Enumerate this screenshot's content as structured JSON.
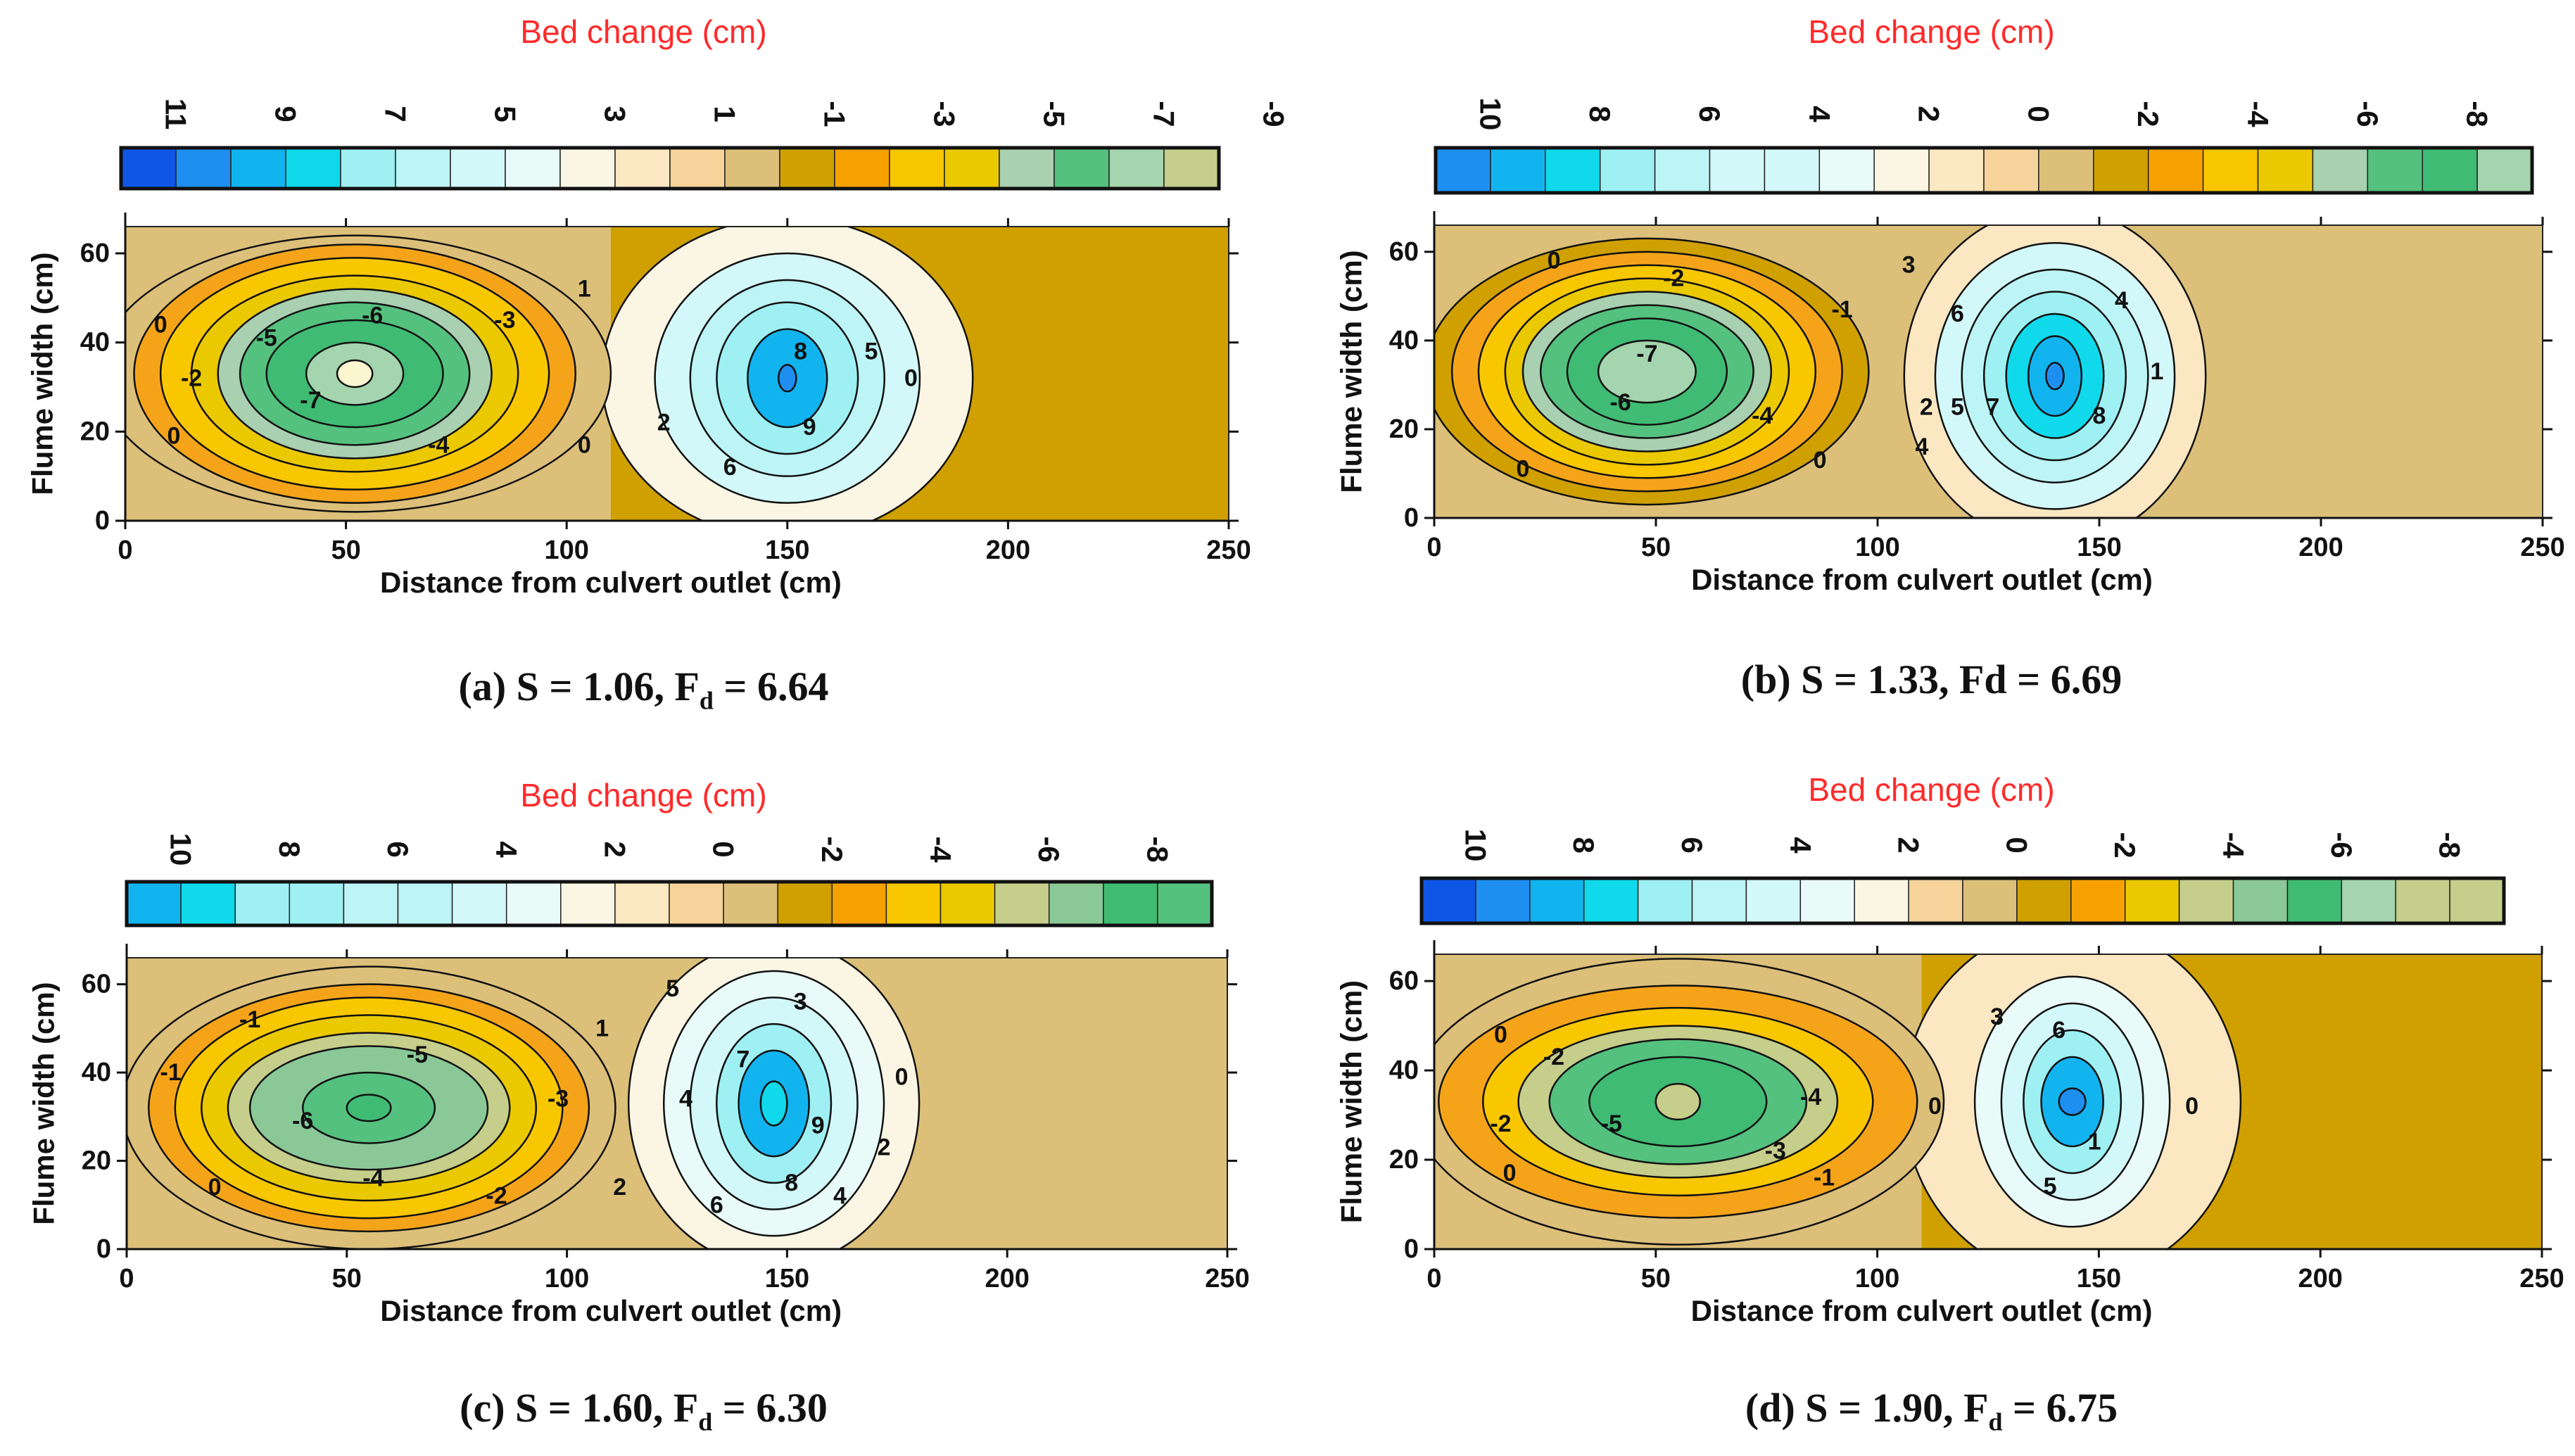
{
  "figure": {
    "colorbar_title": "Bed change (cm)",
    "x_label": "Distance from culvert outlet (cm)",
    "y_label": "Flume width (cm)",
    "x_ticks": [
      0,
      50,
      100,
      150,
      200,
      250
    ],
    "y_ticks": [
      0,
      20,
      40,
      60
    ],
    "xlim": [
      0,
      250
    ],
    "ylim": [
      0,
      66
    ]
  },
  "colors": {
    "0": "#0f56e6",
    "1": "#1e8ef0",
    "2": "#12b4f0",
    "3": "#0fd9ea",
    "4": "#9ef0f3",
    "5": "#bdf4f6",
    "6": "#d3f8f9",
    "7": "#e9fbf8",
    "8": "#fbf6e4",
    "9": "#fbe7c1",
    "10": "#f5d39a",
    "11": "#dcc07a",
    "12": "#cfa000",
    "13": "#f7a100",
    "14": "#f9c700",
    "15": "#ebc900",
    "16": "#c5ce8a",
    "17": "#a9d0b0",
    "18": "#8ac997",
    "19": "#3fbb73",
    "20": "#55c17e",
    "21": "#a4d5ae"
  },
  "chart_data": [
    {
      "type": "contour",
      "caption": "(a)   S = 1.06, F",
      "caption_sub": "d",
      "caption_tail": " = 6.64",
      "colorbar": {
        "tick_labels": [
          "11",
          "9",
          "7",
          "5",
          "3",
          "1",
          "-1",
          "-3",
          "-5",
          "-7",
          "-9"
        ],
        "swatches": [
          "0",
          "1",
          "2",
          "3",
          "4",
          "5",
          "6",
          "7",
          "8",
          "9",
          "10",
          "11",
          "12",
          "13",
          "14",
          "15",
          "17",
          "20",
          "21",
          "16"
        ]
      },
      "background": "#cfa000",
      "scour": {
        "cx": 52,
        "cy": 33,
        "levels": [
          {
            "value": 0,
            "rx": 58,
            "ry": 31,
            "fill": "#dcc07a"
          },
          {
            "value": -1,
            "rx": 50,
            "ry": 29,
            "fill": "#f5a41a"
          },
          {
            "value": -2,
            "rx": 44,
            "ry": 26,
            "fill": "#f9c700"
          },
          {
            "value": -3,
            "rx": 37,
            "ry": 22,
            "fill": "#ebc900"
          },
          {
            "value": -4,
            "rx": 31,
            "ry": 19,
            "fill": "#a9d0b0"
          },
          {
            "value": -5,
            "rx": 26,
            "ry": 16,
            "fill": "#55c17e"
          },
          {
            "value": -6,
            "rx": 20,
            "ry": 12,
            "fill": "#3fbb73"
          },
          {
            "value": -7,
            "rx": 11,
            "ry": 7,
            "fill": "#a4d5ae"
          },
          {
            "value": -8,
            "rx": 4,
            "ry": 3,
            "fill": "#fbf6d0"
          }
        ]
      },
      "deposit": {
        "cx": 150,
        "cy": 32,
        "levels": [
          {
            "value": 1,
            "rx": 42,
            "ry": 36,
            "fill": "#fbf6e4"
          },
          {
            "value": 3,
            "rx": 30,
            "ry": 28,
            "fill": "#d3f8f9"
          },
          {
            "value": 5,
            "rx": 22,
            "ry": 22,
            "fill": "#bdf4f6"
          },
          {
            "value": 6,
            "rx": 16,
            "ry": 17,
            "fill": "#9ef0f3"
          },
          {
            "value": 8,
            "rx": 9,
            "ry": 11,
            "fill": "#12b4f0"
          },
          {
            "value": 10,
            "rx": 2,
            "ry": 3,
            "fill": "#1e8ef0"
          }
        ]
      },
      "contour_labels": [
        {
          "text": "0",
          "x": 8,
          "y": 44
        },
        {
          "text": "0",
          "x": 11,
          "y": 19
        },
        {
          "text": "-2",
          "x": 15,
          "y": 32
        },
        {
          "text": "-5",
          "x": 32,
          "y": 41
        },
        {
          "text": "-6",
          "x": 56,
          "y": 46
        },
        {
          "text": "-3",
          "x": 86,
          "y": 45
        },
        {
          "text": "-7",
          "x": 42,
          "y": 27
        },
        {
          "text": "-4",
          "x": 71,
          "y": 17
        },
        {
          "text": "0",
          "x": 104,
          "y": 17
        },
        {
          "text": "1",
          "x": 104,
          "y": 52
        },
        {
          "text": "2",
          "x": 122,
          "y": 22
        },
        {
          "text": "8",
          "x": 153,
          "y": 38
        },
        {
          "text": "5",
          "x": 169,
          "y": 38
        },
        {
          "text": "0",
          "x": 178,
          "y": 32
        },
        {
          "text": "9",
          "x": 155,
          "y": 21
        },
        {
          "text": "6",
          "x": 137,
          "y": 12
        }
      ]
    },
    {
      "type": "contour",
      "caption": "(b)   S = 1.33, Fd = 6.69",
      "caption_sub": "",
      "caption_tail": "",
      "colorbar": {
        "tick_labels": [
          "10",
          "8",
          "6",
          "4",
          "2",
          "0",
          "-2",
          "-4",
          "-6",
          "-8"
        ],
        "swatches": [
          "1",
          "2",
          "3",
          "4",
          "5",
          "6",
          "6",
          "7",
          "8",
          "9",
          "10",
          "11",
          "12",
          "13",
          "14",
          "15",
          "17",
          "20",
          "19",
          "21"
        ]
      },
      "background": "#dcc07a",
      "scour": {
        "cx": 48,
        "cy": 33,
        "levels": [
          {
            "value": 0,
            "rx": 50,
            "ry": 30,
            "fill": "#cfa000"
          },
          {
            "value": -1,
            "rx": 44,
            "ry": 27,
            "fill": "#f5a41a"
          },
          {
            "value": -2,
            "rx": 38,
            "ry": 24,
            "fill": "#f9c700"
          },
          {
            "value": -3,
            "rx": 32,
            "ry": 21,
            "fill": "#ebc900"
          },
          {
            "value": -4,
            "rx": 28,
            "ry": 18,
            "fill": "#a9d0b0"
          },
          {
            "value": -5,
            "rx": 24,
            "ry": 15,
            "fill": "#55c17e"
          },
          {
            "value": -6,
            "rx": 18,
            "ry": 12,
            "fill": "#3fbb73"
          },
          {
            "value": -7,
            "rx": 11,
            "ry": 7,
            "fill": "#a4d5ae"
          }
        ]
      },
      "deposit": {
        "cx": 140,
        "cy": 32,
        "levels": [
          {
            "value": 0,
            "rx": 34,
            "ry": 38,
            "fill": "#fbe7c1"
          },
          {
            "value": 2,
            "rx": 27,
            "ry": 30,
            "fill": "#d3f8f9"
          },
          {
            "value": 4,
            "rx": 21,
            "ry": 24,
            "fill": "#bdf4f6"
          },
          {
            "value": 5,
            "rx": 16,
            "ry": 19,
            "fill": "#9ef0f3"
          },
          {
            "value": 7,
            "rx": 11,
            "ry": 14,
            "fill": "#0fd9ea"
          },
          {
            "value": 8,
            "rx": 6,
            "ry": 9,
            "fill": "#12b4f0"
          },
          {
            "value": 10,
            "rx": 2,
            "ry": 3,
            "fill": "#1e8ef0"
          }
        ]
      },
      "contour_labels": [
        {
          "text": "0",
          "x": 27,
          "y": 58
        },
        {
          "text": "-2",
          "x": 54,
          "y": 54
        },
        {
          "text": "-1",
          "x": 92,
          "y": 47
        },
        {
          "text": "-7",
          "x": 48,
          "y": 37
        },
        {
          "text": "-6",
          "x": 42,
          "y": 26
        },
        {
          "text": "-4",
          "x": 74,
          "y": 23
        },
        {
          "text": "0",
          "x": 20,
          "y": 11
        },
        {
          "text": "0",
          "x": 87,
          "y": 13
        },
        {
          "text": "3",
          "x": 107,
          "y": 57
        },
        {
          "text": "6",
          "x": 118,
          "y": 46
        },
        {
          "text": "4",
          "x": 155,
          "y": 49
        },
        {
          "text": "1",
          "x": 163,
          "y": 33
        },
        {
          "text": "2",
          "x": 111,
          "y": 25
        },
        {
          "text": "5",
          "x": 118,
          "y": 25
        },
        {
          "text": "7",
          "x": 126,
          "y": 25
        },
        {
          "text": "4",
          "x": 110,
          "y": 16
        },
        {
          "text": "8",
          "x": 150,
          "y": 23
        }
      ]
    },
    {
      "type": "contour",
      "caption": "(c)   S = 1.60, F",
      "caption_sub": "d",
      "caption_tail": " = 6.30",
      "colorbar": {
        "tick_labels": [
          "10",
          "8",
          "6",
          "4",
          "2",
          "0",
          "-2",
          "-4",
          "-6",
          "-8"
        ],
        "swatches": [
          "2",
          "3",
          "4",
          "4",
          "5",
          "5",
          "6",
          "7",
          "8",
          "9",
          "10",
          "11",
          "12",
          "13",
          "14",
          "15",
          "16",
          "18",
          "19",
          "20"
        ]
      },
      "background": "#dcc07a",
      "scour": {
        "cx": 55,
        "cy": 32,
        "levels": [
          {
            "value": 0,
            "rx": 56,
            "ry": 32,
            "fill": "#dcc07a"
          },
          {
            "value": -1,
            "rx": 50,
            "ry": 28,
            "fill": "#f5a41a"
          },
          {
            "value": -2,
            "rx": 44,
            "ry": 25,
            "fill": "#f9c700"
          },
          {
            "value": -3,
            "rx": 38,
            "ry": 21,
            "fill": "#ebc900"
          },
          {
            "value": -4,
            "rx": 32,
            "ry": 17,
            "fill": "#c5ce8a"
          },
          {
            "value": -5,
            "rx": 27,
            "ry": 14,
            "fill": "#8ac997"
          },
          {
            "value": -6,
            "rx": 15,
            "ry": 8,
            "fill": "#55c17e"
          },
          {
            "value": -7,
            "rx": 5,
            "ry": 3,
            "fill": "#3fbb73"
          }
        ]
      },
      "deposit": {
        "cx": 147,
        "cy": 33,
        "levels": [
          {
            "value": 1,
            "rx": 33,
            "ry": 37,
            "fill": "#fbf6e4"
          },
          {
            "value": 3,
            "rx": 25,
            "ry": 30,
            "fill": "#e9fbf8"
          },
          {
            "value": 5,
            "rx": 19,
            "ry": 24,
            "fill": "#d3f8f9"
          },
          {
            "value": 7,
            "rx": 13,
            "ry": 18,
            "fill": "#9ef0f3"
          },
          {
            "value": 8,
            "rx": 8,
            "ry": 12,
            "fill": "#12b4f0"
          },
          {
            "value": 9,
            "rx": 3,
            "ry": 5,
            "fill": "#0fd9ea"
          }
        ]
      },
      "contour_labels": [
        {
          "text": "-1",
          "x": 28,
          "y": 52
        },
        {
          "text": "-5",
          "x": 66,
          "y": 44
        },
        {
          "text": "-1",
          "x": 10,
          "y": 40
        },
        {
          "text": "-6",
          "x": 40,
          "y": 29
        },
        {
          "text": "-3",
          "x": 98,
          "y": 34
        },
        {
          "text": "-4",
          "x": 56,
          "y": 16
        },
        {
          "text": "-2",
          "x": 84,
          "y": 12
        },
        {
          "text": "0",
          "x": 20,
          "y": 14
        },
        {
          "text": "1",
          "x": 108,
          "y": 50
        },
        {
          "text": "5",
          "x": 124,
          "y": 59
        },
        {
          "text": "3",
          "x": 153,
          "y": 56
        },
        {
          "text": "0",
          "x": 176,
          "y": 39
        },
        {
          "text": "7",
          "x": 140,
          "y": 43
        },
        {
          "text": "4",
          "x": 127,
          "y": 34
        },
        {
          "text": "2",
          "x": 112,
          "y": 14
        },
        {
          "text": "6",
          "x": 134,
          "y": 10
        },
        {
          "text": "8",
          "x": 151,
          "y": 15
        },
        {
          "text": "9",
          "x": 157,
          "y": 28
        },
        {
          "text": "2",
          "x": 172,
          "y": 23
        },
        {
          "text": "4",
          "x": 162,
          "y": 12
        }
      ]
    },
    {
      "type": "contour",
      "caption": "(d)   S = 1.90, F",
      "caption_sub": "d",
      "caption_tail": " = 6.75",
      "colorbar": {
        "tick_labels": [
          "10",
          "8",
          "6",
          "4",
          "2",
          "0",
          "-2",
          "-4",
          "-6",
          "-8"
        ],
        "swatches": [
          "0",
          "1",
          "2",
          "3",
          "4",
          "5",
          "6",
          "7",
          "8",
          "10",
          "11",
          "12",
          "13",
          "15",
          "16",
          "18",
          "19",
          "21",
          "16",
          "16"
        ]
      },
      "background": "#cfa000",
      "scour": {
        "cx": 55,
        "cy": 33,
        "levels": [
          {
            "value": 0,
            "rx": 60,
            "ry": 32,
            "fill": "#dcc07a"
          },
          {
            "value": -1,
            "rx": 54,
            "ry": 26,
            "fill": "#f5a41a"
          },
          {
            "value": -2,
            "rx": 44,
            "ry": 21,
            "fill": "#f9c700"
          },
          {
            "value": -3,
            "rx": 36,
            "ry": 17,
            "fill": "#c5ce8a"
          },
          {
            "value": -4,
            "rx": 29,
            "ry": 14,
            "fill": "#55c17e"
          },
          {
            "value": -5,
            "rx": 20,
            "ry": 10,
            "fill": "#3fbb73"
          },
          {
            "value": -6,
            "rx": 5,
            "ry": 4,
            "fill": "#c5ce8a"
          }
        ]
      },
      "deposit": {
        "cx": 144,
        "cy": 33,
        "levels": [
          {
            "value": 0,
            "rx": 38,
            "ry": 40,
            "fill": "#fbe7c1"
          },
          {
            "value": 2,
            "rx": 22,
            "ry": 28,
            "fill": "#e9fbf8"
          },
          {
            "value": 4,
            "rx": 16,
            "ry": 22,
            "fill": "#d3f8f9"
          },
          {
            "value": 6,
            "rx": 11,
            "ry": 16,
            "fill": "#9ef0f3"
          },
          {
            "value": 7,
            "rx": 7,
            "ry": 10,
            "fill": "#12b4f0"
          },
          {
            "value": 9,
            "rx": 3,
            "ry": 3,
            "fill": "#1e8ef0"
          }
        ]
      },
      "contour_labels": [
        {
          "text": "0",
          "x": 15,
          "y": 48
        },
        {
          "text": "-2",
          "x": 27,
          "y": 43
        },
        {
          "text": "-5",
          "x": 40,
          "y": 28
        },
        {
          "text": "-2",
          "x": 15,
          "y": 28
        },
        {
          "text": "0",
          "x": 17,
          "y": 17
        },
        {
          "text": "-3",
          "x": 77,
          "y": 22
        },
        {
          "text": "-1",
          "x": 88,
          "y": 16
        },
        {
          "text": "-4",
          "x": 85,
          "y": 34
        },
        {
          "text": "0",
          "x": 113,
          "y": 32
        },
        {
          "text": "3",
          "x": 127,
          "y": 52
        },
        {
          "text": "6",
          "x": 141,
          "y": 49
        },
        {
          "text": "0",
          "x": 171,
          "y": 32
        },
        {
          "text": "1",
          "x": 149,
          "y": 24
        },
        {
          "text": "5",
          "x": 139,
          "y": 14
        }
      ]
    }
  ]
}
